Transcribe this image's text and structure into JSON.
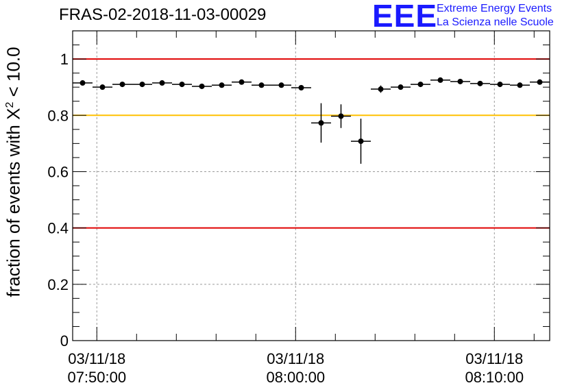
{
  "header": {
    "title": "FRAS-02-2018-11-03-00029",
    "logo_mark": "EEE",
    "logo_line1": "Extreme Energy Events",
    "logo_line2": "La Scienza nelle Scuole"
  },
  "chart_data": {
    "type": "scatter",
    "title": "FRAS-02-2018-11-03-00029",
    "ylabel_pre": "fraction of events with X",
    "ylabel_sup": "2",
    "ylabel_post": " < 10.0",
    "ylim": [
      0,
      1.1
    ],
    "yticks": [
      "0",
      "0.2",
      "0.4",
      "0.6",
      "0.8",
      "1"
    ],
    "ytick_values": [
      0,
      0.2,
      0.4,
      0.6,
      0.8,
      1.0
    ],
    "xlim": [
      "07:48:47",
      "08:12:47"
    ],
    "xticks": [
      {
        "date": "03/11/18",
        "time": "07:50:00",
        "x": "07:50:00"
      },
      {
        "date": "03/11/18",
        "time": "08:00:00",
        "x": "08:00:00"
      },
      {
        "date": "03/11/18",
        "time": "08:10:00",
        "x": "08:10:00"
      }
    ],
    "grid": true,
    "reference_lines": [
      {
        "y": 1.0,
        "color": "#e00000"
      },
      {
        "y": 0.8,
        "color": "#ffc000"
      },
      {
        "y": 0.4,
        "color": "#e00000"
      }
    ],
    "series": [
      {
        "color": "#000000",
        "points": [
          {
            "x": "07:49:17",
            "y": 0.915,
            "err": 0.006
          },
          {
            "x": "07:50:17",
            "y": 0.9,
            "err": 0.006
          },
          {
            "x": "07:51:17",
            "y": 0.91,
            "err": 0.006
          },
          {
            "x": "07:52:17",
            "y": 0.91,
            "err": 0.006
          },
          {
            "x": "07:53:17",
            "y": 0.915,
            "err": 0.006
          },
          {
            "x": "07:54:17",
            "y": 0.91,
            "err": 0.006
          },
          {
            "x": "07:55:17",
            "y": 0.903,
            "err": 0.006
          },
          {
            "x": "07:56:17",
            "y": 0.907,
            "err": 0.006
          },
          {
            "x": "07:57:17",
            "y": 0.918,
            "err": 0.006
          },
          {
            "x": "07:58:17",
            "y": 0.907,
            "err": 0.006
          },
          {
            "x": "07:59:17",
            "y": 0.907,
            "err": 0.006
          },
          {
            "x": "08:00:17",
            "y": 0.898,
            "err": 0.006
          },
          {
            "x": "08:01:17",
            "y": 0.773,
            "err": 0.07
          },
          {
            "x": "08:02:17",
            "y": 0.797,
            "err": 0.042
          },
          {
            "x": "08:03:17",
            "y": 0.708,
            "err": 0.08
          },
          {
            "x": "08:04:17",
            "y": 0.893,
            "err": 0.013
          },
          {
            "x": "08:05:17",
            "y": 0.9,
            "err": 0.006
          },
          {
            "x": "08:06:17",
            "y": 0.91,
            "err": 0.006
          },
          {
            "x": "08:07:17",
            "y": 0.925,
            "err": 0.006
          },
          {
            "x": "08:08:17",
            "y": 0.92,
            "err": 0.006
          },
          {
            "x": "08:09:17",
            "y": 0.913,
            "err": 0.006
          },
          {
            "x": "08:10:17",
            "y": 0.91,
            "err": 0.006
          },
          {
            "x": "08:11:17",
            "y": 0.907,
            "err": 0.006
          },
          {
            "x": "08:12:17",
            "y": 0.918,
            "err": 0.006
          }
        ]
      }
    ]
  }
}
